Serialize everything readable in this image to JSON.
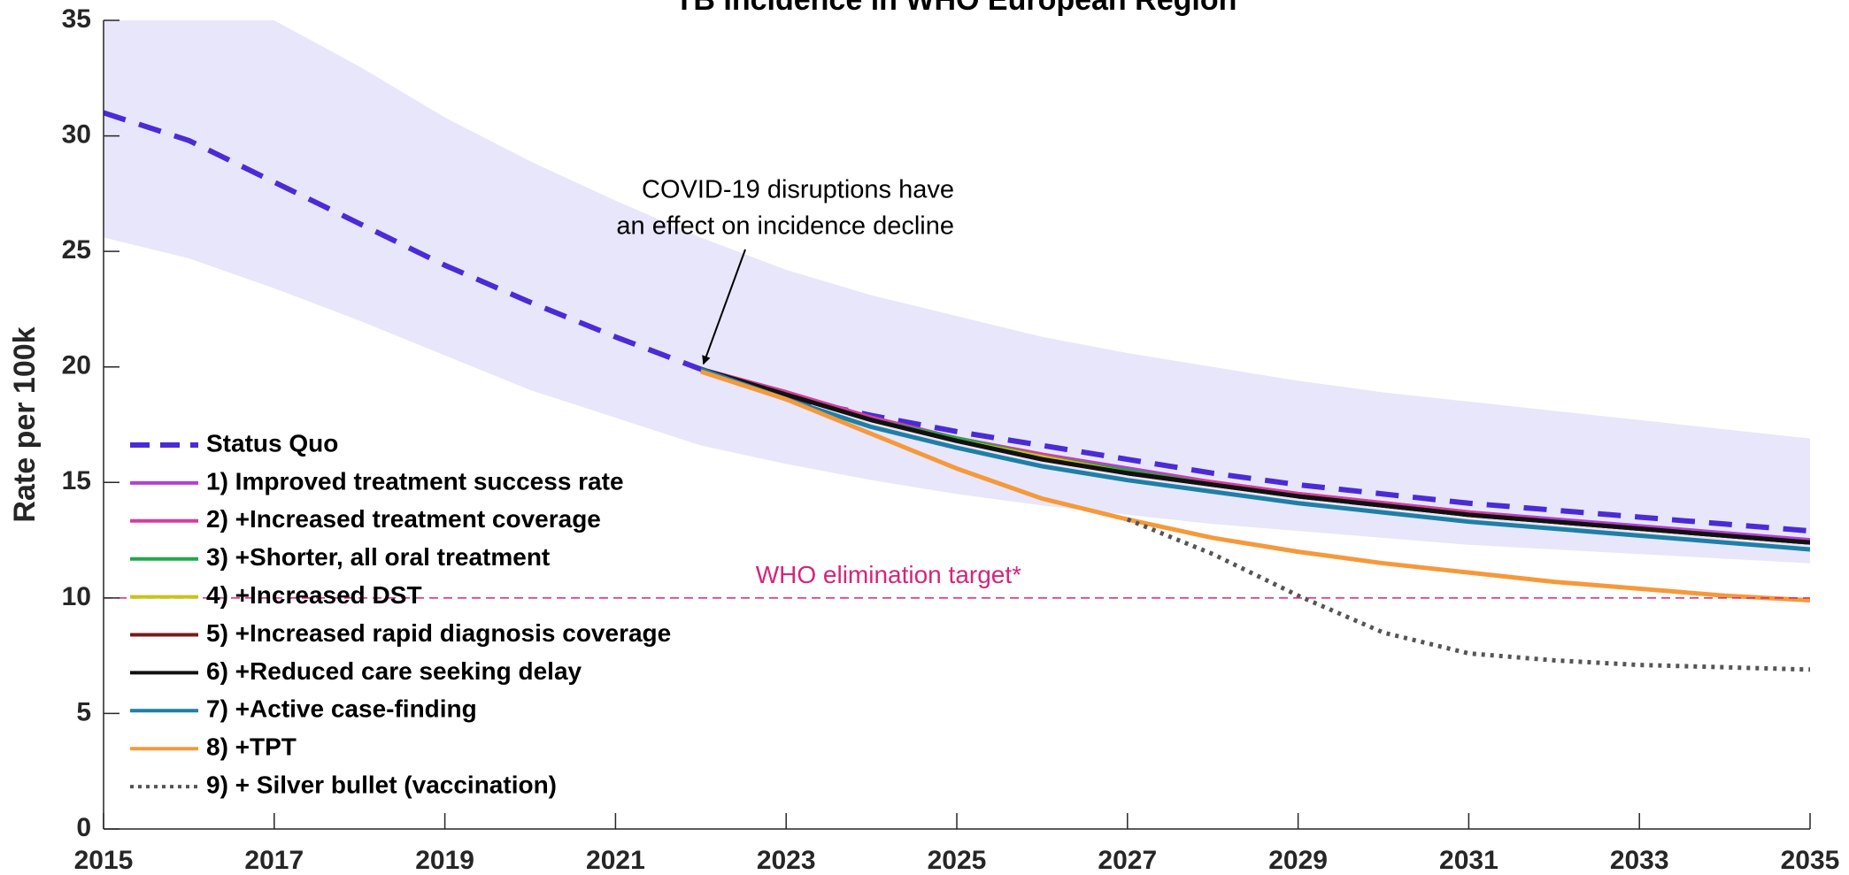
{
  "chart_data": {
    "type": "line",
    "title": "TB Incidence in WHO European Region",
    "y_label": "Rate per 100k",
    "x": [
      2015,
      2016,
      2017,
      2018,
      2019,
      2020,
      2021,
      2022,
      2023,
      2024,
      2025,
      2026,
      2027,
      2028,
      2029,
      2030,
      2031,
      2032,
      2033,
      2034,
      2035
    ],
    "xlim": [
      2015,
      2035
    ],
    "xticks": [
      2015,
      2017,
      2019,
      2021,
      2023,
      2025,
      2027,
      2029,
      2031,
      2033,
      2035
    ],
    "ylim": [
      0,
      35
    ],
    "yticks": [
      0,
      5,
      10,
      15,
      20,
      25,
      30,
      35
    ],
    "band": {
      "color": "#e8e6fa",
      "upper": [
        38,
        36.5,
        35,
        33,
        30.8,
        28.9,
        27.2,
        25.6,
        24.2,
        23.1,
        22.2,
        21.3,
        20.6,
        20.0,
        19.4,
        18.9,
        18.5,
        18.1,
        17.7,
        17.3,
        16.9
      ],
      "lower": [
        25.6,
        24.7,
        23.4,
        22.0,
        20.5,
        19.0,
        17.8,
        16.6,
        15.8,
        15.1,
        14.5,
        14.0,
        13.6,
        13.2,
        12.9,
        12.6,
        12.3,
        12.1,
        11.9,
        11.7,
        11.5
      ]
    },
    "target": {
      "value": 10,
      "label": "WHO elimination target*",
      "color": "#d6247a"
    },
    "annotation": {
      "lines": [
        "COVID-19 disruptions have",
        "an effect on incidence decline"
      ],
      "x": 2022,
      "y": 19.9
    },
    "legend": "upper left",
    "series": [
      {
        "name": "Status Quo",
        "color": "#4b2bd6",
        "style": "dashed",
        "values": [
          31,
          29.8,
          28,
          26.2,
          24.4,
          22.8,
          21.3,
          19.9,
          18.7,
          17.9,
          17.2,
          16.6,
          16.0,
          15.4,
          14.9,
          14.5,
          14.1,
          13.8,
          13.5,
          13.2,
          12.9
        ]
      },
      {
        "name": "1) Improved treatment success rate",
        "color": "#b23fd9",
        "style": "solid",
        "values": [
          null,
          null,
          null,
          null,
          null,
          null,
          null,
          19.9,
          18.9,
          17.8,
          16.9,
          16.2,
          15.6,
          15.0,
          14.5,
          14.1,
          13.7,
          13.4,
          13.1,
          12.8,
          12.5
        ]
      },
      {
        "name": "2) +Increased treatment coverage",
        "color": "#d63d9e",
        "style": "solid",
        "values": [
          null,
          null,
          null,
          null,
          null,
          null,
          null,
          19.9,
          18.9,
          17.8,
          16.9,
          16.2,
          15.5,
          15.0,
          14.5,
          14.1,
          13.7,
          13.3,
          13.0,
          12.7,
          12.4
        ]
      },
      {
        "name": "3) +Shorter, all oral treatment",
        "color": "#20a84a",
        "style": "solid",
        "values": [
          null,
          null,
          null,
          null,
          null,
          null,
          null,
          19.9,
          18.8,
          17.7,
          16.9,
          16.1,
          15.5,
          14.9,
          14.4,
          14.0,
          13.6,
          13.3,
          13.0,
          12.7,
          12.4
        ]
      },
      {
        "name": "4) +Increased DST",
        "color": "#c8c41a",
        "style": "solid",
        "values": [
          null,
          null,
          null,
          null,
          null,
          null,
          null,
          19.9,
          18.8,
          17.7,
          16.8,
          16.1,
          15.4,
          14.9,
          14.4,
          14.0,
          13.6,
          13.3,
          13.0,
          12.7,
          12.4
        ]
      },
      {
        "name": "5) +Increased rapid diagnosis coverage",
        "color": "#7a1a1a",
        "style": "solid",
        "values": [
          null,
          null,
          null,
          null,
          null,
          null,
          null,
          19.9,
          18.8,
          17.7,
          16.8,
          16.0,
          15.4,
          14.9,
          14.4,
          14.0,
          13.6,
          13.3,
          13.0,
          12.7,
          12.4
        ]
      },
      {
        "name": "6) +Reduced care seeking delay",
        "color": "#111111",
        "style": "solid",
        "values": [
          null,
          null,
          null,
          null,
          null,
          null,
          null,
          19.9,
          18.8,
          17.7,
          16.8,
          16.0,
          15.4,
          14.9,
          14.4,
          14.0,
          13.6,
          13.3,
          13.0,
          12.7,
          12.4
        ]
      },
      {
        "name": "7) +Active case-finding",
        "color": "#1f7fa6",
        "style": "solid",
        "values": [
          null,
          null,
          null,
          null,
          null,
          null,
          null,
          19.9,
          18.6,
          17.4,
          16.5,
          15.7,
          15.1,
          14.6,
          14.1,
          13.7,
          13.3,
          13.0,
          12.7,
          12.4,
          12.1
        ]
      },
      {
        "name": "8) +TPT",
        "color": "#f5993a",
        "style": "solid",
        "values": [
          null,
          null,
          null,
          null,
          null,
          null,
          null,
          19.8,
          18.6,
          17.1,
          15.6,
          14.3,
          13.4,
          12.6,
          12.0,
          11.5,
          11.1,
          10.7,
          10.4,
          10.1,
          9.9
        ]
      },
      {
        "name": "9) + Silver bullet (vaccination)",
        "color": "#555555",
        "style": "dotted",
        "values": [
          null,
          null,
          null,
          null,
          null,
          null,
          null,
          null,
          null,
          null,
          null,
          null,
          13.4,
          11.9,
          10.1,
          8.5,
          7.6,
          7.3,
          7.1,
          7.0,
          6.9
        ]
      }
    ]
  }
}
